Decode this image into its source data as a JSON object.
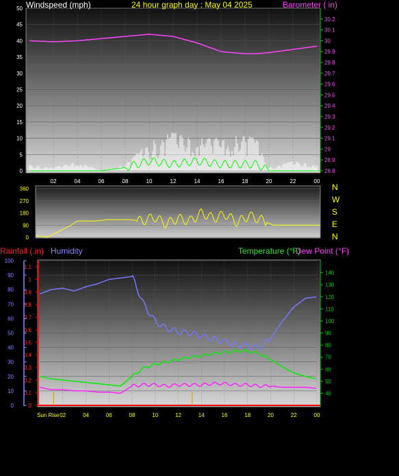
{
  "header": {
    "left_title": "Windspeed (mph)",
    "center_title": "24 hour graph day : May 04 2025",
    "right_title": "Barometer ( in)"
  },
  "compass": [
    "N",
    "W",
    "S",
    "E",
    "N"
  ],
  "bottom_titles": {
    "rain": "Rainfall (.in)",
    "humidity": "Humidity",
    "temperature": "Temperature (°F)",
    "dewpoint": "Dew Point (°F)",
    "sunrise": "Sun Rise"
  },
  "colors": {
    "wind_white": "#ffffff",
    "wind_green": "#00ff00",
    "barometer": "#ff44ff",
    "direction": "#ffff00",
    "humidity": "#7777ff",
    "temperature": "#00ee00",
    "dewpoint": "#ff22ff",
    "rain": "#ff0000",
    "right_axis_green": "#00cc00"
  },
  "chart_data": [
    {
      "type": "area",
      "name": "wind_barometer",
      "x_ticks": [
        "02",
        "04",
        "06",
        "08",
        "10",
        "12",
        "14",
        "16",
        "18",
        "20",
        "22",
        "00"
      ],
      "y_left_ticks": [
        "0",
        "5",
        "10",
        "15",
        "20",
        "25",
        "30",
        "35",
        "40",
        "45",
        "50"
      ],
      "y_left_range": [
        0,
        50
      ],
      "y_right_ticks": [
        "28.8",
        "28.9",
        "29",
        "29.1",
        "29.2",
        "29.3",
        "29.4",
        "29.5",
        "29.6",
        "29.7",
        "29.8",
        "29.9",
        "30",
        "30.1",
        "30.2"
      ],
      "y_right_range": [
        28.8,
        30.3
      ],
      "hours": [
        0,
        2,
        4,
        6,
        8,
        10,
        12,
        14,
        16,
        18,
        19,
        20,
        22,
        24
      ],
      "barometer": [
        30.0,
        29.99,
        30.0,
        30.02,
        30.04,
        30.06,
        30.04,
        29.98,
        29.9,
        29.88,
        29.88,
        29.89,
        29.92,
        29.95
      ],
      "wind_gust_max": [
        2,
        1,
        3,
        0,
        2,
        9,
        12,
        10,
        10,
        11,
        10,
        1,
        3,
        2
      ],
      "wind_avg": [
        0,
        0,
        0,
        0,
        1,
        3,
        2,
        3,
        2,
        2,
        2,
        0,
        0,
        0
      ]
    },
    {
      "type": "line",
      "name": "wind_direction",
      "y_ticks": [
        "0",
        "90",
        "180",
        "270",
        "360"
      ],
      "y_range": [
        0,
        360
      ],
      "hours": [
        0,
        1,
        3,
        3.5,
        5,
        6,
        8,
        9,
        10,
        11,
        12,
        13,
        14,
        15,
        16,
        17,
        18,
        19,
        20,
        22,
        24
      ],
      "direction": [
        10,
        0,
        90,
        120,
        120,
        130,
        130,
        120,
        150,
        100,
        140,
        120,
        180,
        140,
        170,
        110,
        160,
        130,
        90,
        90,
        90
      ]
    },
    {
      "type": "line",
      "name": "rain_humidity_temperature",
      "x_ticks": [
        "02",
        "04",
        "06",
        "08",
        "10",
        "12",
        "14",
        "16",
        "18",
        "20",
        "22",
        "00"
      ],
      "y_rain_ticks": [
        "0",
        "0.1",
        "0.2",
        "0.3",
        "0.4",
        "0.5",
        "0.6",
        "0.7",
        "0.8",
        "0.9",
        "1",
        "1.1"
      ],
      "y_rain_range": [
        0,
        1.1
      ],
      "y_hum_ticks": [
        "0",
        "10",
        "20",
        "30",
        "40",
        "50",
        "60",
        "70",
        "80",
        "90",
        "100"
      ],
      "y_hum_range": [
        0,
        100
      ],
      "y_temp_ticks": [
        "40",
        "50",
        "60",
        "70",
        "80",
        "90",
        "100",
        "110",
        "120",
        "130",
        "140"
      ],
      "y_temp_range": [
        30,
        150
      ],
      "hours": [
        0,
        1,
        2,
        3,
        4,
        5,
        6,
        7,
        8,
        9,
        10,
        11,
        12,
        13,
        14,
        15,
        16,
        17,
        18,
        19,
        20,
        21,
        22,
        23,
        24
      ],
      "humidity": [
        77,
        80,
        81,
        79,
        82,
        84,
        87,
        88,
        89,
        70,
        58,
        53,
        51,
        50,
        48,
        46,
        44,
        42,
        41,
        40,
        46,
        58,
        68,
        74,
        75
      ],
      "temperature": [
        54,
        52,
        51,
        50,
        49,
        48,
        47,
        46,
        54,
        61,
        64,
        66,
        68,
        70,
        71,
        73,
        74,
        75,
        75,
        73,
        68,
        62,
        57,
        54,
        52
      ],
      "dewpoint": [
        45,
        43,
        43,
        42,
        42,
        41,
        41,
        40,
        46,
        47,
        47,
        46,
        47,
        47,
        47,
        48,
        48,
        47,
        47,
        46,
        46,
        45,
        45,
        45,
        44
      ],
      "rain": [
        0,
        0,
        0,
        0,
        0,
        0,
        0,
        0,
        0,
        0,
        0,
        0,
        0,
        0,
        0,
        0,
        0,
        0,
        0,
        0,
        0,
        0,
        0,
        0,
        0
      ],
      "sunrise_hour": 1.2,
      "sunset_hour": 13.2
    }
  ]
}
